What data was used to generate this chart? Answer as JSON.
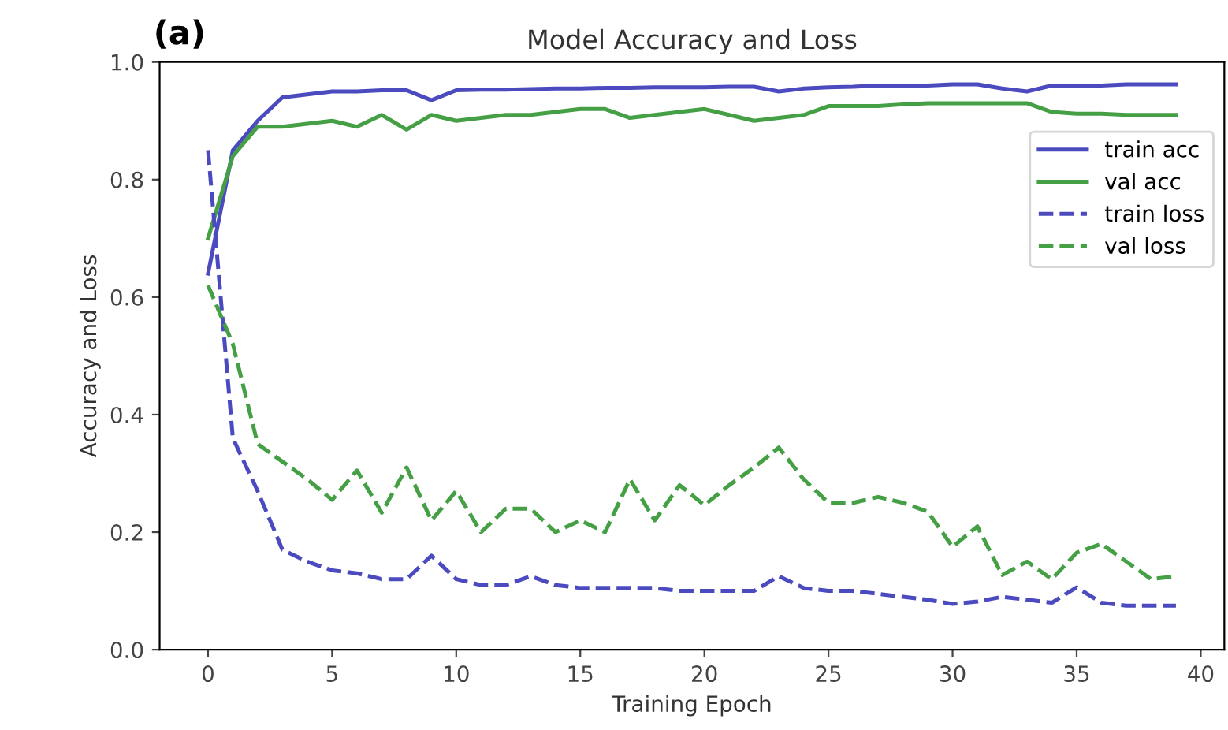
{
  "chart_data": {
    "type": "line",
    "title": "Model Accuracy and Loss",
    "xlabel": "Training Epoch",
    "ylabel": "Accuracy and Loss",
    "annotations": [
      "(a)"
    ],
    "x": [
      0,
      1,
      2,
      3,
      4,
      5,
      6,
      7,
      8,
      9,
      10,
      11,
      12,
      13,
      14,
      15,
      16,
      17,
      18,
      19,
      20,
      21,
      22,
      23,
      24,
      25,
      26,
      27,
      28,
      29,
      30,
      31,
      32,
      33,
      34,
      35,
      36,
      37,
      38,
      39
    ],
    "series": [
      {
        "name": "train acc",
        "color": "#4b4bbf",
        "line_style": "solid",
        "values": [
          0.64,
          0.85,
          0.9,
          0.94,
          0.945,
          0.95,
          0.95,
          0.952,
          0.952,
          0.935,
          0.952,
          0.953,
          0.953,
          0.954,
          0.955,
          0.955,
          0.956,
          0.956,
          0.957,
          0.957,
          0.957,
          0.958,
          0.958,
          0.95,
          0.955,
          0.957,
          0.958,
          0.96,
          0.96,
          0.96,
          0.962,
          0.962,
          0.955,
          0.95,
          0.96,
          0.96,
          0.96,
          0.962,
          0.962,
          0.962
        ]
      },
      {
        "name": "val acc",
        "color": "#45a045",
        "line_style": "solid",
        "values": [
          0.7,
          0.84,
          0.89,
          0.89,
          0.895,
          0.9,
          0.89,
          0.91,
          0.885,
          0.91,
          0.9,
          0.905,
          0.91,
          0.91,
          0.915,
          0.92,
          0.92,
          0.905,
          0.91,
          0.915,
          0.92,
          0.91,
          0.9,
          0.905,
          0.91,
          0.925,
          0.925,
          0.925,
          0.928,
          0.93,
          0.93,
          0.93,
          0.93,
          0.93,
          0.915,
          0.912,
          0.912,
          0.91,
          0.91,
          0.91
        ]
      },
      {
        "name": "train loss",
        "color": "#4b4bbf",
        "line_style": "dashed",
        "values": [
          0.85,
          0.36,
          0.27,
          0.17,
          0.15,
          0.135,
          0.13,
          0.12,
          0.12,
          0.16,
          0.12,
          0.11,
          0.11,
          0.125,
          0.11,
          0.105,
          0.105,
          0.105,
          0.105,
          0.1,
          0.1,
          0.1,
          0.1,
          0.125,
          0.105,
          0.1,
          0.1,
          0.095,
          0.09,
          0.085,
          0.078,
          0.082,
          0.09,
          0.085,
          0.08,
          0.106,
          0.08,
          0.075,
          0.075,
          0.075
        ]
      },
      {
        "name": "val loss",
        "color": "#45a045",
        "line_style": "dashed",
        "values": [
          0.62,
          0.52,
          0.35,
          0.32,
          0.29,
          0.255,
          0.305,
          0.233,
          0.31,
          0.22,
          0.27,
          0.2,
          0.24,
          0.24,
          0.2,
          0.22,
          0.2,
          0.29,
          0.22,
          0.28,
          0.246,
          0.28,
          0.31,
          0.344,
          0.29,
          0.25,
          0.25,
          0.26,
          0.25,
          0.235,
          0.175,
          0.21,
          0.127,
          0.15,
          0.12,
          0.165,
          0.18,
          0.15,
          0.12,
          0.125
        ]
      }
    ],
    "xlim": [
      -1.95,
      40.95
    ],
    "xticks": [
      0,
      5,
      10,
      15,
      20,
      25,
      30,
      35,
      40
    ],
    "ylim": [
      0.0,
      1.0
    ],
    "yticks": [
      {
        "value": 0.0,
        "label": "0.0"
      },
      {
        "value": 0.2,
        "label": "0.2"
      },
      {
        "value": 0.4,
        "label": "0.4"
      },
      {
        "value": 0.6,
        "label": "0.6"
      },
      {
        "value": 0.8,
        "label": "0.8"
      },
      {
        "value": 1.0,
        "label": "1.0"
      }
    ],
    "legend": "upper right",
    "grid": false,
    "marker": "none"
  }
}
